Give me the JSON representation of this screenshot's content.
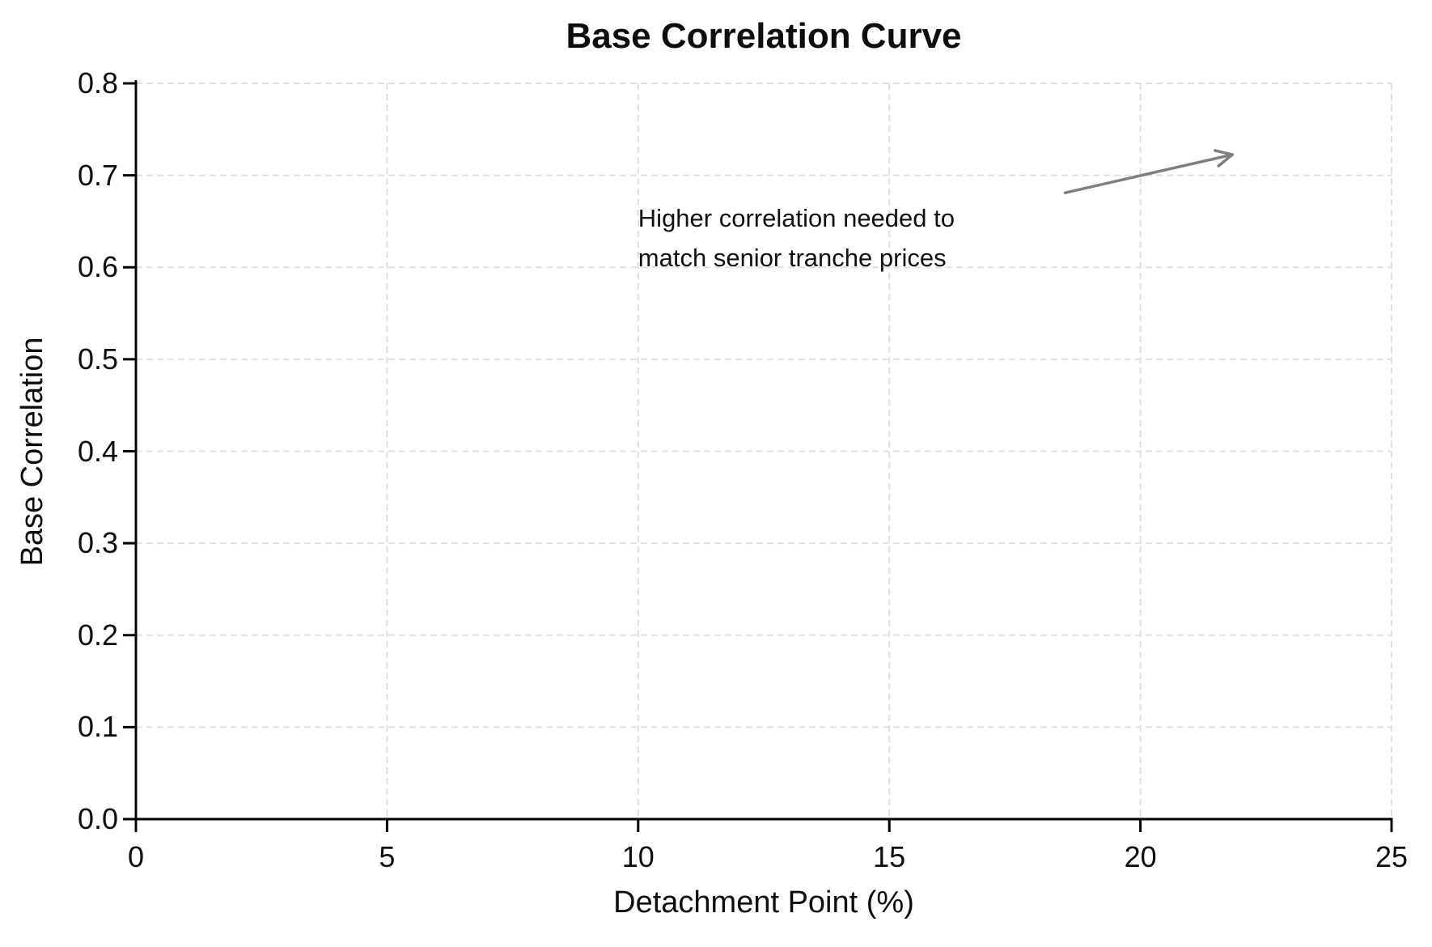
{
  "chart_data": {
    "type": "line",
    "title": "Base Correlation Curve",
    "xlabel": "Detachment Point (%)",
    "ylabel": "Base Correlation",
    "xlim": [
      0,
      25
    ],
    "ylim": [
      0.0,
      0.8
    ],
    "x_ticks": {
      "values": [
        0,
        5,
        10,
        15,
        20,
        25
      ],
      "labels": [
        "0",
        "5",
        "10",
        "15",
        "20",
        "25"
      ]
    },
    "y_ticks": {
      "values": [
        0.0,
        0.1,
        0.2,
        0.3,
        0.4,
        0.5,
        0.6,
        0.7,
        0.8
      ],
      "labels": [
        "0.0",
        "0.1",
        "0.2",
        "0.3",
        "0.4",
        "0.5",
        "0.6",
        "0.7",
        "0.8"
      ]
    },
    "grid": {
      "visible": true,
      "line_style": "dashed"
    },
    "legend_position": "none",
    "series": [],
    "annotations": [
      {
        "text": "Higher correlation needed to\nmatch senior tranche prices",
        "text_xy": [
          10.0,
          0.675
        ],
        "arrow_from": [
          18.5,
          0.681
        ],
        "arrow_to": [
          21.83,
          0.7225
        ]
      }
    ],
    "colors": {
      "grid": "#e0e0e0",
      "axis": "#000000",
      "text": "#0d0d0d",
      "arrow": "#7f7f7f",
      "background": "#ffffff"
    }
  }
}
